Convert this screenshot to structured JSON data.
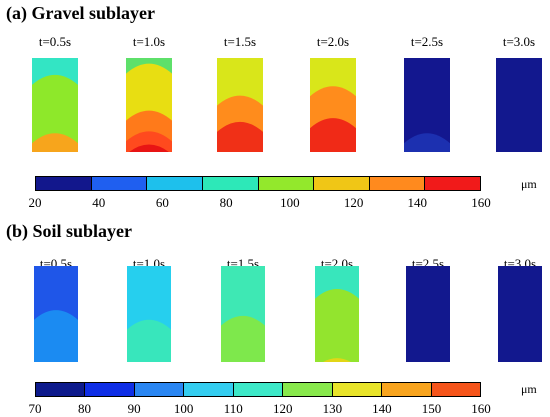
{
  "panels": [
    {
      "title": "(a) Gravel sublayer",
      "unit": "μm",
      "times": [
        {
          "label": "t=0.5s",
          "bands": [
            {
              "from": 0.0,
              "color": "#33e5c4"
            },
            {
              "from": 0.18,
              "color": "#8ee82a"
            },
            {
              "from": 0.8,
              "color": "#f7a51c"
            }
          ]
        },
        {
          "label": "t=1.0s",
          "bands": [
            {
              "from": 0.0,
              "color": "#5ee06a"
            },
            {
              "from": 0.06,
              "color": "#e8de12"
            },
            {
              "from": 0.56,
              "color": "#ff7a1a"
            },
            {
              "from": 0.78,
              "color": "#ff4a1e"
            },
            {
              "from": 0.92,
              "color": "#e81414"
            }
          ]
        },
        {
          "label": "t=1.5s",
          "bands": [
            {
              "from": 0.0,
              "color": "#d9e61a"
            },
            {
              "from": 0.4,
              "color": "#ff8c1c"
            },
            {
              "from": 0.68,
              "color": "#f03017"
            }
          ]
        },
        {
          "label": "t=2.0s",
          "bands": [
            {
              "from": 0.0,
              "color": "#d9e61a"
            },
            {
              "from": 0.3,
              "color": "#ff8c1c"
            },
            {
              "from": 0.64,
              "color": "#f02a17"
            }
          ]
        },
        {
          "label": "t=2.5s",
          "bands": [
            {
              "from": 0.0,
              "color": "#13178f"
            },
            {
              "from": 0.8,
              "color": "#1c30b0"
            }
          ]
        },
        {
          "label": "t=3.0s",
          "bands": [
            {
              "from": 0.0,
              "color": "#12188e"
            }
          ]
        }
      ],
      "colorbar": {
        "colors": [
          "#12178c",
          "#1f5ff0",
          "#1ec0ec",
          "#2de8b8",
          "#93e82c",
          "#f0c616",
          "#ff8a1e",
          "#f11a1a"
        ],
        "ticks": [
          "20",
          "40",
          "60",
          "80",
          "100",
          "120",
          "140",
          "160"
        ]
      }
    },
    {
      "title": "(b) Soil sublayer",
      "unit": "μm",
      "times": [
        {
          "label": "t=0.5s",
          "bands": [
            {
              "from": 0.0,
              "color": "#1f56e8"
            },
            {
              "from": 0.46,
              "color": "#1b8bf2"
            }
          ]
        },
        {
          "label": "t=1.0s",
          "bands": [
            {
              "from": 0.0,
              "color": "#26cfee"
            },
            {
              "from": 0.56,
              "color": "#38e6bc"
            }
          ]
        },
        {
          "label": "t=1.5s",
          "bands": [
            {
              "from": 0.0,
              "color": "#3ee8b4"
            },
            {
              "from": 0.52,
              "color": "#7ee84c"
            }
          ]
        },
        {
          "label": "t=2.0s",
          "bands": [
            {
              "from": 0.0,
              "color": "#38e6bc"
            },
            {
              "from": 0.24,
              "color": "#93e42e"
            },
            {
              "from": 0.96,
              "color": "#e2d616"
            }
          ]
        },
        {
          "label": "t=2.5s",
          "bands": [
            {
              "from": 0.0,
              "color": "#12188e"
            }
          ]
        },
        {
          "label": "t=3.0s",
          "bands": [
            {
              "from": 0.0,
              "color": "#12188e"
            }
          ]
        }
      ],
      "colorbar": {
        "colors": [
          "#0d1a8c",
          "#0f2ee6",
          "#2a86f2",
          "#34cdf0",
          "#3de8c8",
          "#88e84c",
          "#e8e42a",
          "#f8a41e",
          "#f5541a"
        ],
        "ticks": [
          "70",
          "80",
          "90",
          "100",
          "110",
          "120",
          "130",
          "140",
          "150",
          "160"
        ]
      }
    }
  ]
}
